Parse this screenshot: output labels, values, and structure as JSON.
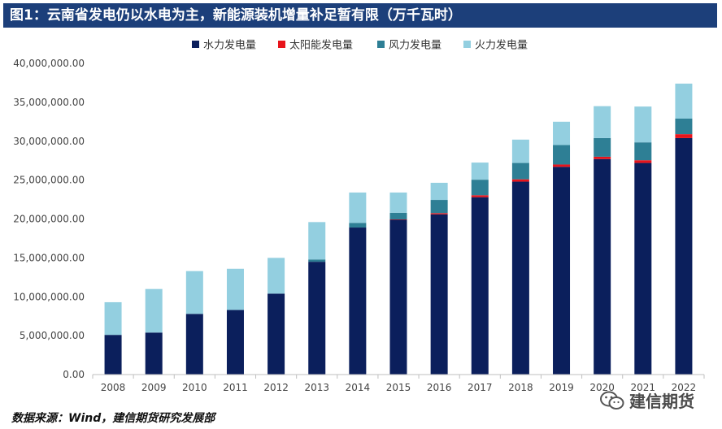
{
  "header": {
    "title": "图1：云南省发电仍以水电为主，新能源装机增量补足暂有限（万千瓦时）"
  },
  "footer": {
    "source": "数据来源：Wind，建信期货研究发展部",
    "watermark": "建信期货"
  },
  "colors": {
    "hydro": "#0b1f5c",
    "solar": "#e8141b",
    "wind": "#2e7f95",
    "thermal": "#93cfe0",
    "title_bg": "#1c3f7a"
  },
  "chart_data": {
    "type": "bar",
    "stacked": true,
    "title": "",
    "xlabel": "",
    "ylabel": "",
    "ylim": [
      0,
      40000000
    ],
    "yticks": [
      0,
      5000000,
      10000000,
      15000000,
      20000000,
      25000000,
      30000000,
      35000000,
      40000000
    ],
    "ytick_labels": [
      "0.00",
      "5,000,000.00",
      "10,000,000.00",
      "15,000,000.00",
      "20,000,000.00",
      "25,000,000.00",
      "30,000,000.00",
      "35,000,000.00",
      "40,000,000.00"
    ],
    "categories": [
      "2008",
      "2009",
      "2010",
      "2011",
      "2012",
      "2013",
      "2014",
      "2015",
      "2016",
      "2017",
      "2018",
      "2019",
      "2020",
      "2021",
      "2022"
    ],
    "legend_position": "top-center",
    "grid": false,
    "series": [
      {
        "name": "水力发电量",
        "color_key": "hydro",
        "values": [
          5100000,
          5400000,
          7800000,
          8300000,
          10400000,
          14500000,
          18900000,
          19900000,
          20600000,
          22800000,
          24800000,
          26700000,
          27700000,
          27200000,
          30400000
        ]
      },
      {
        "name": "太阳能发电量",
        "color_key": "solar",
        "values": [
          0,
          0,
          0,
          0,
          0,
          0,
          0,
          50000,
          150000,
          250000,
          300000,
          300000,
          300000,
          350000,
          500000
        ]
      },
      {
        "name": "风力发电量",
        "color_key": "wind",
        "values": [
          0,
          0,
          0,
          0,
          0,
          300000,
          600000,
          850000,
          1700000,
          2000000,
          2100000,
          2500000,
          2400000,
          2300000,
          2000000
        ]
      },
      {
        "name": "火力发电量",
        "color_key": "thermal",
        "values": [
          4200000,
          5600000,
          5500000,
          5300000,
          4600000,
          4800000,
          3900000,
          2600000,
          2200000,
          2200000,
          3000000,
          3000000,
          4100000,
          4600000,
          4500000
        ]
      }
    ]
  }
}
